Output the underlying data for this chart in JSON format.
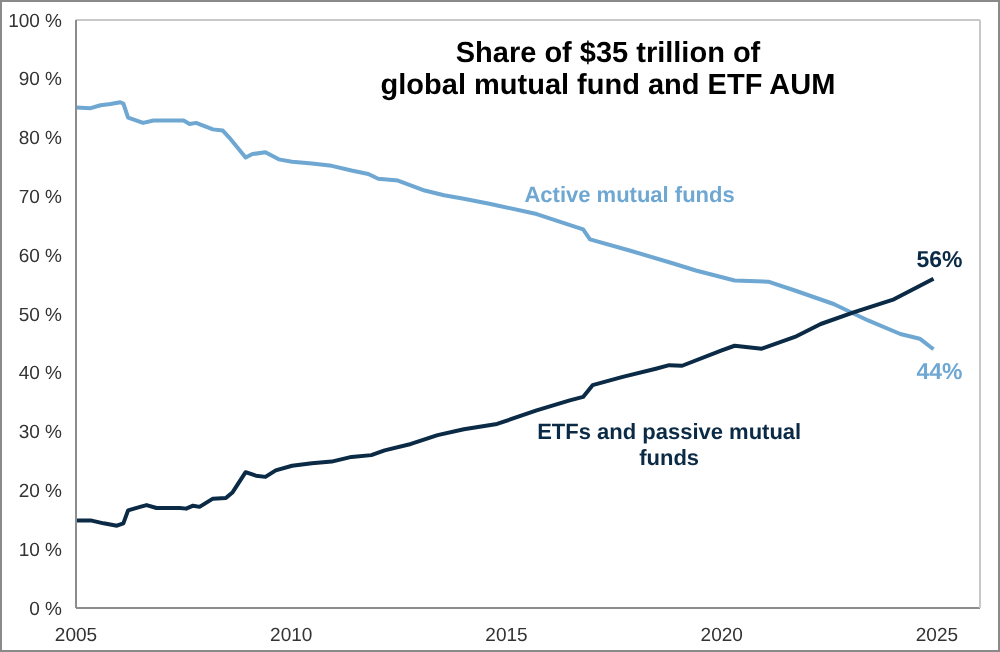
{
  "chart_data": {
    "type": "line",
    "title": "Share of $35 trillion of global mutual fund and ETF AUM",
    "xlim": [
      2005,
      2026
    ],
    "xticks": [
      2005,
      2010,
      2015,
      2020,
      2025
    ],
    "ylim": [
      0,
      100
    ],
    "yticks": [
      {
        "value": 0,
        "label": "0 %"
      },
      {
        "value": 10,
        "label": "10 %"
      },
      {
        "value": 20,
        "label": "20 %"
      },
      {
        "value": 30,
        "label": "30 %"
      },
      {
        "value": 40,
        "label": "40 %"
      },
      {
        "value": 50,
        "label": "50 %"
      },
      {
        "value": 60,
        "label": "60 %"
      },
      {
        "value": 70,
        "label": "70 %"
      },
      {
        "value": 80,
        "label": "80 %"
      },
      {
        "value": 90,
        "label": "90 %"
      },
      {
        "value": 100,
        "label": "100 %"
      }
    ],
    "series": [
      {
        "name": "Active mutual funds",
        "color": "#6ea7d2",
        "x": [
          2005.0,
          2005.34,
          2005.57,
          2005.8,
          2006.03,
          2006.1,
          2006.21,
          2006.56,
          2006.8,
          2007.5,
          2007.64,
          2007.79,
          2008.18,
          2008.41,
          2008.56,
          2008.94,
          2009.1,
          2009.4,
          2009.71,
          2010.02,
          2010.48,
          2010.94,
          2011.4,
          2011.79,
          2012.02,
          2012.48,
          2013.1,
          2013.55,
          2014.01,
          2014.63,
          2014.76,
          2015.7,
          2016.78,
          2016.94,
          2017.86,
          2018.78,
          2019.4,
          2020.3,
          2021.08,
          2021.7,
          2022.6,
          2023.4,
          2024.15,
          2024.6,
          2024.92
        ],
        "values": [
          85.1,
          85.0,
          85.5,
          85.7,
          86.0,
          85.8,
          83.4,
          82.5,
          82.9,
          82.9,
          82.3,
          82.5,
          81.4,
          81.2,
          80.0,
          76.6,
          77.2,
          77.5,
          76.3,
          75.9,
          75.6,
          75.2,
          74.4,
          73.8,
          73.0,
          72.7,
          71.0,
          70.2,
          69.6,
          68.7,
          68.5,
          67.0,
          64.4,
          62.7,
          60.8,
          58.8,
          57.4,
          55.7,
          55.5,
          54.0,
          51.7,
          48.9,
          46.6,
          45.8,
          44
        ],
        "value_labels": [
          null,
          null,
          null,
          null,
          null,
          null,
          null,
          null,
          null,
          null,
          null,
          null,
          null,
          null,
          null,
          null,
          null,
          null,
          null,
          null,
          null,
          null,
          null,
          null,
          null,
          null,
          null,
          null,
          null,
          null,
          null,
          null,
          null,
          null,
          null,
          null,
          null,
          null,
          null,
          null,
          null,
          null,
          null,
          null,
          "44%"
        ]
      },
      {
        "name": "ETFs and passive mutual funds",
        "color": "#0b2a45",
        "x": [
          2005.0,
          2005.34,
          2005.64,
          2005.95,
          2006.1,
          2006.21,
          2006.49,
          2006.64,
          2006.87,
          2007.41,
          2007.56,
          2007.72,
          2007.87,
          2008.18,
          2008.48,
          2008.64,
          2008.94,
          2009.18,
          2009.4,
          2009.64,
          2010.02,
          2010.48,
          2010.94,
          2011.4,
          2011.86,
          2012.17,
          2012.78,
          2013.4,
          2014.01,
          2014.78,
          2015.7,
          2016.47,
          2016.78,
          2017.0,
          2017.7,
          2018.47,
          2018.78,
          2019.08,
          2020.0,
          2020.3,
          2020.93,
          2021.7,
          2022.3,
          2023.08,
          2024.0,
          2024.92
        ],
        "values": [
          14.9,
          14.9,
          14.4,
          14.0,
          14.4,
          16.6,
          17.2,
          17.5,
          17.0,
          17.0,
          16.9,
          17.4,
          17.2,
          18.6,
          18.7,
          19.7,
          23.1,
          22.5,
          22.3,
          23.4,
          24.2,
          24.6,
          24.9,
          25.7,
          26.0,
          26.8,
          27.9,
          29.4,
          30.4,
          31.3,
          33.6,
          35.3,
          35.9,
          37.9,
          39.3,
          40.7,
          41.3,
          41.2,
          43.8,
          44.6,
          44.1,
          46.1,
          48.3,
          50.3,
          52.5,
          56
        ],
        "value_labels": [
          null,
          null,
          null,
          null,
          null,
          null,
          null,
          null,
          null,
          null,
          null,
          null,
          null,
          null,
          null,
          null,
          null,
          null,
          null,
          null,
          null,
          null,
          null,
          null,
          null,
          null,
          null,
          null,
          null,
          null,
          null,
          null,
          null,
          null,
          null,
          null,
          null,
          null,
          null,
          null,
          null,
          null,
          null,
          null,
          null,
          "56%"
        ]
      }
    ]
  }
}
